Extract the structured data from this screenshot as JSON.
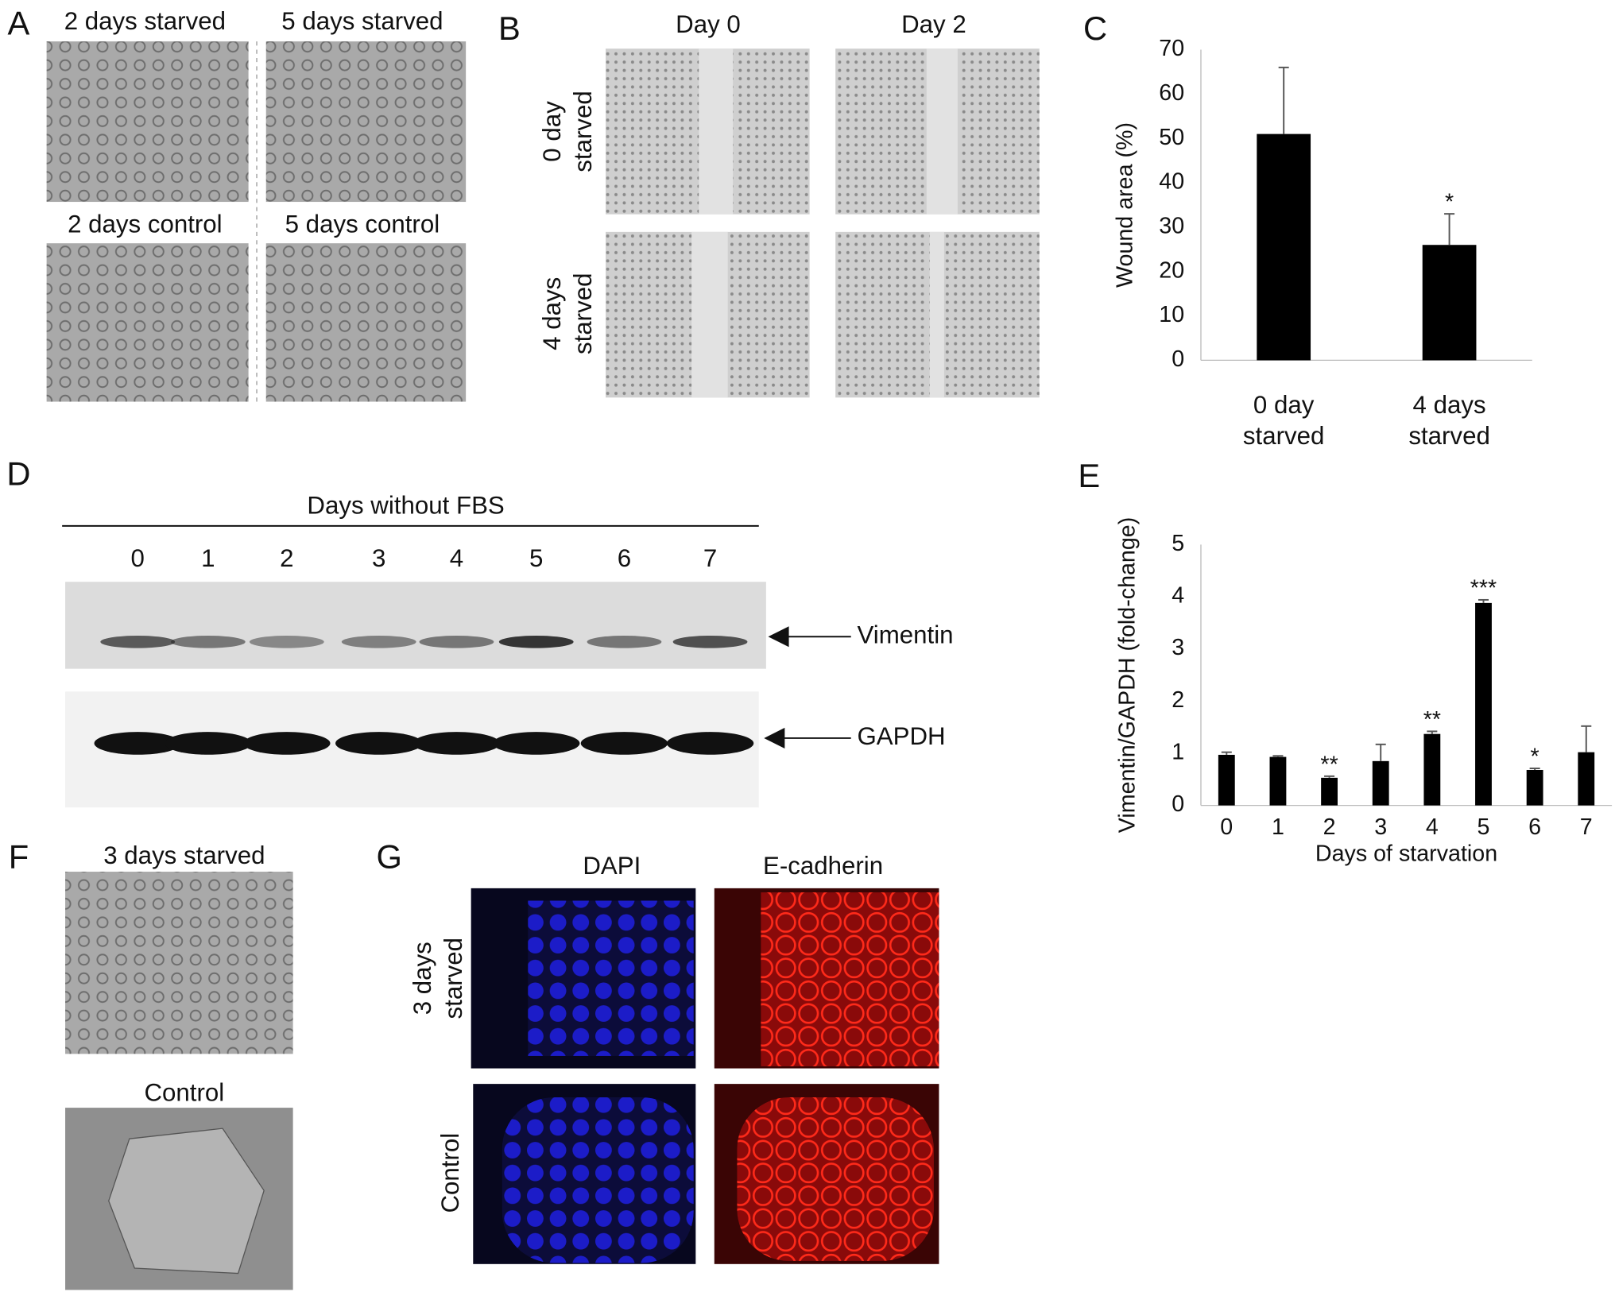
{
  "panels": {
    "A": {
      "letter": "A",
      "captions": [
        "2 days starved",
        "5 days starved",
        "2 days control",
        "5 days control"
      ]
    },
    "B": {
      "letter": "B",
      "columns": [
        "Day 0",
        "Day 2"
      ],
      "rows": [
        [
          "0 day",
          "starved"
        ],
        [
          "4 days",
          "starved"
        ]
      ]
    },
    "C": {
      "letter": "C"
    },
    "D": {
      "letter": "D",
      "title": "Days without FBS",
      "lanes": [
        "0",
        "1",
        "2",
        "3",
        "4",
        "5",
        "6",
        "7"
      ],
      "bands": [
        "Vimentin",
        "GAPDH"
      ]
    },
    "E": {
      "letter": "E"
    },
    "F": {
      "letter": "F",
      "captions": [
        "3 days starved",
        "Control"
      ]
    },
    "G": {
      "letter": "G",
      "columns": [
        "DAPI",
        "E-cadherin"
      ],
      "rows": [
        [
          "3 days",
          "starved"
        ],
        [
          "Control"
        ]
      ]
    }
  },
  "chart_data": [
    {
      "type": "bar",
      "ylabel": "Wound area (%)",
      "categories": [
        "0 day starved",
        "4 days starved"
      ],
      "values": [
        51,
        26
      ],
      "errors": [
        15,
        7
      ],
      "significance": [
        null,
        "*"
      ],
      "color": "#000000",
      "ylim": [
        0,
        70
      ],
      "yticks": [
        0,
        10,
        20,
        30,
        40,
        50,
        60,
        70
      ],
      "grid": false
    },
    {
      "type": "bar",
      "ylabel": "Vimentin/GAPDH (fold-change)",
      "xlabel": "Days of starvation",
      "categories": [
        "0",
        "1",
        "2",
        "3",
        "4",
        "5",
        "6",
        "7"
      ],
      "values": [
        0.97,
        0.93,
        0.53,
        0.85,
        1.37,
        3.88,
        0.68,
        1.02
      ],
      "errors": [
        0.05,
        0.02,
        0.03,
        0.32,
        0.05,
        0.06,
        0.03,
        0.5
      ],
      "significance": [
        null,
        null,
        "**",
        null,
        "**",
        "***",
        "*",
        null
      ],
      "color": "#000000",
      "ylim": [
        0,
        5
      ],
      "yticks": [
        0,
        1,
        2,
        3,
        4,
        5
      ],
      "grid": false
    }
  ]
}
